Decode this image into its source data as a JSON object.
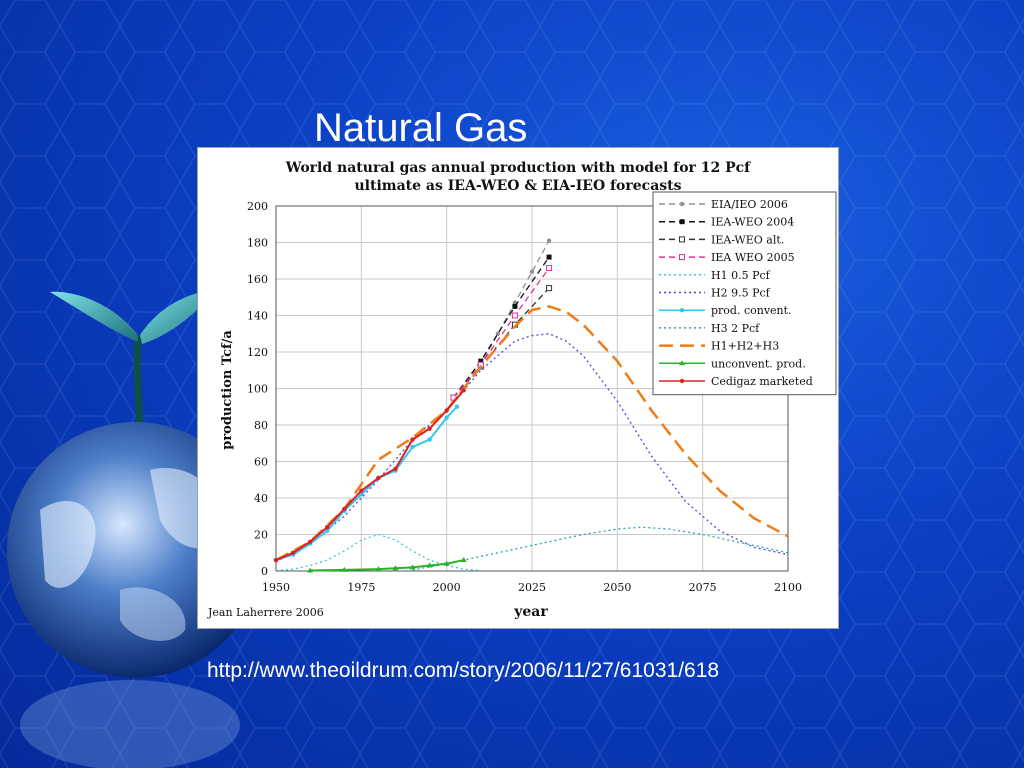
{
  "slide": {
    "title": "Natural Gas",
    "source_url": "http://www.theoildrum.com/story/2006/11/27/61031/618"
  },
  "chart_data": {
    "type": "line",
    "title": "World natural gas annual production with model for 12 Pcf",
    "subtitle": "ultimate as IEA-WEO & EIA-IEO forecasts",
    "xlabel": "year",
    "ylabel": "production Tcf/a",
    "credit": "Jean Laherrere 2006",
    "xlim": [
      1950,
      2100
    ],
    "ylim": [
      0,
      200
    ],
    "xticks": [
      1950,
      1975,
      2000,
      2025,
      2050,
      2075,
      2100
    ],
    "yticks": [
      0,
      20,
      40,
      60,
      80,
      100,
      120,
      140,
      160,
      180,
      200
    ],
    "grid": true,
    "legend_position": "top-right",
    "series": [
      {
        "name": "EIA/IEO 2006",
        "color": "#909090",
        "style": "dash",
        "marker": "circle",
        "x": [
          2002,
          2010,
          2015,
          2020,
          2025,
          2030
        ],
        "y": [
          95,
          113,
          130,
          147,
          164,
          181
        ]
      },
      {
        "name": "IEA-WEO 2004",
        "color": "#111111",
        "style": "dash",
        "marker": "square",
        "x": [
          2002,
          2010,
          2020,
          2030
        ],
        "y": [
          95,
          115,
          145,
          172
        ]
      },
      {
        "name": "IEA-WEO alt.",
        "color": "#333333",
        "style": "dash",
        "marker": "open-square",
        "x": [
          2002,
          2010,
          2020,
          2030
        ],
        "y": [
          95,
          112,
          135,
          155
        ]
      },
      {
        "name": "IEA WEO 2005",
        "color": "#e0309a",
        "style": "dash",
        "marker": "open-square",
        "x": [
          2002,
          2010,
          2020,
          2030
        ],
        "y": [
          95,
          113,
          140,
          166
        ]
      },
      {
        "name": "H1 0.5 Pcf",
        "color": "#30c8f0",
        "style": "dot",
        "marker": "none",
        "x": [
          1950,
          1955,
          1960,
          1965,
          1970,
          1975,
          1980,
          1985,
          1990,
          1995,
          2000,
          2005,
          2010
        ],
        "y": [
          0.3,
          1,
          3,
          6,
          11,
          17,
          20,
          17,
          11,
          6,
          3,
          1,
          0.3
        ]
      },
      {
        "name": "H2 9.5 Pcf",
        "color": "#4a46d8",
        "style": "dot",
        "marker": "none",
        "x": [
          1950,
          1960,
          1970,
          1980,
          1990,
          2000,
          2010,
          2020,
          2025,
          2030,
          2035,
          2040,
          2050,
          2060,
          2070,
          2080,
          2090,
          2100
        ],
        "y": [
          5,
          15,
          30,
          50,
          72,
          88,
          110,
          126,
          129,
          130,
          126,
          118,
          93,
          63,
          38,
          22,
          13,
          9
        ]
      },
      {
        "name": "prod. convent.",
        "color": "#30c8f0",
        "style": "solid",
        "marker": "circle",
        "x": [
          1950,
          1955,
          1960,
          1965,
          1970,
          1975,
          1980,
          1985,
          1990,
          1995,
          2000,
          2003
        ],
        "y": [
          6,
          9,
          15,
          22,
          33,
          42,
          51,
          55,
          68,
          72,
          84,
          90
        ]
      },
      {
        "name": "H3 2 Pcf",
        "color": "#2aa7a7",
        "style": "dot",
        "marker": "none",
        "x": [
          1990,
          2000,
          2010,
          2020,
          2030,
          2040,
          2050,
          2057,
          2065,
          2075,
          2085,
          2100
        ],
        "y": [
          0.5,
          4,
          8,
          12,
          16,
          20,
          23,
          24,
          23,
          20,
          16,
          10
        ]
      },
      {
        "name": "H1+H2+H3",
        "color": "#f07c18",
        "style": "longdash",
        "marker": "none",
        "x": [
          1950,
          1960,
          1970,
          1980,
          1985,
          1990,
          2000,
          2010,
          2020,
          2025,
          2030,
          2035,
          2040,
          2050,
          2060,
          2070,
          2080,
          2090,
          2100
        ],
        "y": [
          6,
          16,
          34,
          61,
          67,
          73,
          88,
          112,
          134,
          143,
          145,
          142,
          135,
          115,
          88,
          64,
          44,
          29,
          19
        ]
      },
      {
        "name": "unconvent. prod.",
        "color": "#28b428",
        "style": "solid",
        "marker": "triangle",
        "x": [
          1960,
          1970,
          1980,
          1985,
          1990,
          1995,
          2000,
          2005
        ],
        "y": [
          0.3,
          0.6,
          1,
          1.5,
          2,
          3,
          4,
          6
        ]
      },
      {
        "name": "Cedigaz marketed",
        "color": "#e02020",
        "style": "solid",
        "marker": "circle",
        "x": [
          1950,
          1955,
          1960,
          1965,
          1970,
          1975,
          1980,
          1985,
          1990,
          1995,
          2000,
          2005
        ],
        "y": [
          6,
          10,
          16,
          24,
          34,
          44,
          51,
          56,
          72,
          78,
          88,
          99
        ]
      }
    ]
  }
}
